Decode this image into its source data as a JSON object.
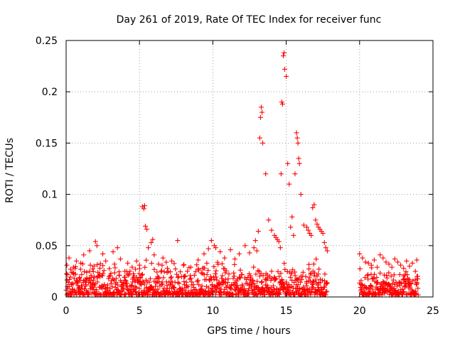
{
  "colors": {
    "points": "#ff0000",
    "axes": "#000000",
    "grid": "#a0a0a0"
  },
  "chart_data": {
    "type": "scatter",
    "marker": "plus",
    "title": "Day 261 of 2019, Rate Of TEC Index for receiver func",
    "xlabel": "GPS time / hours",
    "ylabel": "ROTI / TECUs",
    "xlim": [
      0,
      25
    ],
    "ylim": [
      0,
      0.25
    ],
    "xticks": [
      0,
      5,
      10,
      15,
      20,
      25
    ],
    "xtick_labels": [
      "0",
      "5",
      "10",
      "15",
      "20",
      "25"
    ],
    "yticks": [
      0,
      0.05,
      0.1,
      0.15,
      0.2,
      0.25
    ],
    "ytick_labels": [
      "0",
      "0.05",
      "0.1",
      "0.15",
      "0.2",
      "0.25"
    ],
    "grid": true,
    "series": [
      {
        "name": "ROTI",
        "x": [
          0.05,
          0.1,
          0.2,
          0.3,
          0.4,
          0.5,
          0.7,
          0.9,
          1.0,
          1.2,
          1.4,
          1.6,
          1.9,
          2.0,
          2.1,
          2.3,
          2.5,
          2.7,
          3.0,
          3.2,
          3.3,
          3.5,
          3.7,
          4.0,
          4.2,
          4.5,
          4.8,
          5.0,
          5.2,
          5.3,
          5.35,
          5.4,
          5.5,
          5.6,
          5.8,
          5.9,
          6.0,
          6.3,
          6.6,
          6.9,
          7.2,
          7.6,
          8.0,
          8.5,
          9.0,
          9.4,
          9.7,
          9.9,
          10.1,
          10.2,
          10.5,
          10.8,
          11.2,
          11.5,
          11.8,
          12.2,
          12.5,
          12.8,
          12.9,
          13.0,
          13.1,
          13.2,
          13.25,
          13.3,
          13.35,
          13.4,
          13.6,
          13.8,
          14.0,
          14.2,
          14.3,
          14.4,
          14.5,
          14.6,
          14.65,
          14.7,
          14.75,
          14.8,
          14.85,
          14.9,
          15.0,
          15.1,
          15.2,
          15.3,
          15.4,
          15.5,
          15.6,
          15.7,
          15.75,
          15.8,
          15.85,
          15.9,
          16.0,
          16.2,
          16.4,
          16.5,
          16.6,
          16.7,
          16.8,
          16.9,
          17.0,
          17.1,
          17.2,
          17.3,
          17.4,
          17.5,
          17.6,
          17.7,
          17.8,
          20.0,
          20.2,
          20.4,
          20.6,
          20.8,
          21.0,
          21.2,
          21.4,
          21.6,
          21.8,
          22.0,
          22.2,
          22.4,
          22.6,
          22.8,
          23.0,
          23.2,
          23.4,
          23.6,
          23.8,
          23.9
        ],
        "y": [
          0.031,
          0.022,
          0.038,
          0.027,
          0.013,
          0.029,
          0.035,
          0.018,
          0.033,
          0.041,
          0.024,
          0.045,
          0.03,
          0.054,
          0.05,
          0.028,
          0.042,
          0.035,
          0.021,
          0.044,
          0.032,
          0.048,
          0.037,
          0.025,
          0.033,
          0.029,
          0.035,
          0.031,
          0.088,
          0.086,
          0.089,
          0.069,
          0.066,
          0.048,
          0.053,
          0.056,
          0.041,
          0.032,
          0.038,
          0.028,
          0.035,
          0.055,
          0.031,
          0.029,
          0.036,
          0.042,
          0.047,
          0.055,
          0.05,
          0.048,
          0.044,
          0.038,
          0.046,
          0.037,
          0.042,
          0.05,
          0.043,
          0.048,
          0.055,
          0.045,
          0.064,
          0.155,
          0.175,
          0.185,
          0.18,
          0.15,
          0.12,
          0.075,
          0.065,
          0.06,
          0.058,
          0.056,
          0.054,
          0.048,
          0.12,
          0.19,
          0.188,
          0.235,
          0.238,
          0.222,
          0.215,
          0.13,
          0.11,
          0.068,
          0.078,
          0.06,
          0.12,
          0.16,
          0.155,
          0.15,
          0.135,
          0.13,
          0.1,
          0.07,
          0.068,
          0.065,
          0.062,
          0.06,
          0.087,
          0.09,
          0.075,
          0.071,
          0.068,
          0.066,
          0.064,
          0.062,
          0.053,
          0.048,
          0.045,
          0.042,
          0.038,
          0.034,
          0.033,
          0.031,
          0.036,
          0.029,
          0.041,
          0.038,
          0.034,
          0.032,
          0.029,
          0.037,
          0.034,
          0.031,
          0.028,
          0.035,
          0.03,
          0.033,
          0.025,
          0.036
        ]
      }
    ],
    "dense_segments": [
      {
        "x0": 0.0,
        "x1": 17.8,
        "ymin": 0.002,
        "ymax": 0.038
      },
      {
        "x0": 20.0,
        "x1": 24.0,
        "ymin": 0.002,
        "ymax": 0.032
      }
    ]
  }
}
